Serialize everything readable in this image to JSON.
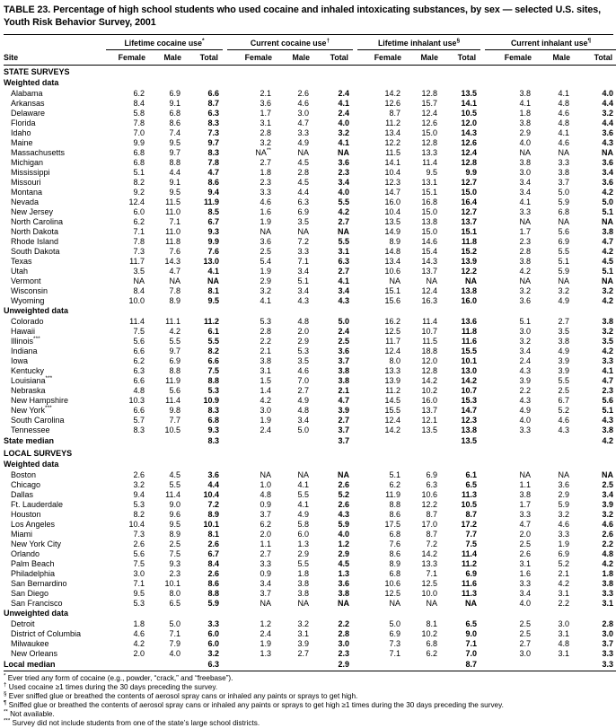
{
  "title": "TABLE 23. Percentage of high school students who used cocaine and inhaled intoxicating substances, by sex — selected U.S. sites, Youth Risk Behavior Survey, 2001",
  "header": {
    "site_label": "Site",
    "sub_labels": [
      "Female",
      "Male",
      "Total"
    ],
    "groups": [
      {
        "label": "Lifetime cocaine use",
        "sup": "*"
      },
      {
        "label": "Current cocaine use",
        "sup": "†"
      },
      {
        "label": "Lifetime inhalant use",
        "sup": "§"
      },
      {
        "label": "Current inhalant use",
        "sup": "¶"
      }
    ]
  },
  "sections": [
    {
      "type": "section",
      "label": "STATE SURVEYS"
    },
    {
      "type": "subsection",
      "label": "Weighted data"
    },
    {
      "type": "row",
      "site": "Alabama",
      "values": [
        "6.2",
        "6.9",
        "6.6",
        "2.1",
        "2.6",
        "2.4",
        "14.2",
        "12.8",
        "13.5",
        "3.8",
        "4.1",
        "4.0"
      ]
    },
    {
      "type": "row",
      "site": "Arkansas",
      "values": [
        "8.4",
        "9.1",
        "8.7",
        "3.6",
        "4.6",
        "4.1",
        "12.6",
        "15.7",
        "14.1",
        "4.1",
        "4.8",
        "4.4"
      ]
    },
    {
      "type": "row",
      "site": "Delaware",
      "values": [
        "5.8",
        "6.8",
        "6.3",
        "1.7",
        "3.0",
        "2.4",
        "8.7",
        "12.4",
        "10.5",
        "1.8",
        "4.6",
        "3.2"
      ]
    },
    {
      "type": "row",
      "site": "Florida",
      "values": [
        "7.8",
        "8.6",
        "8.3",
        "3.1",
        "4.7",
        "4.0",
        "11.2",
        "12.6",
        "12.0",
        "3.8",
        "4.8",
        "4.4"
      ]
    },
    {
      "type": "row",
      "site": "Idaho",
      "values": [
        "7.0",
        "7.4",
        "7.3",
        "2.8",
        "3.3",
        "3.2",
        "13.4",
        "15.0",
        "14.3",
        "2.9",
        "4.1",
        "3.6"
      ]
    },
    {
      "type": "row",
      "site": "Maine",
      "values": [
        "9.9",
        "9.5",
        "9.7",
        "3.2",
        "4.9",
        "4.1",
        "12.2",
        "12.8",
        "12.6",
        "4.0",
        "4.6",
        "4.3"
      ]
    },
    {
      "type": "row",
      "site": "Massachusetts",
      "values": [
        "6.8",
        "9.7",
        "8.3",
        "NA**",
        "NA",
        "NA",
        "11.5",
        "13.3",
        "12.4",
        "NA",
        "NA",
        "NA"
      ]
    },
    {
      "type": "row",
      "site": "Michigan",
      "values": [
        "6.8",
        "8.8",
        "7.8",
        "2.7",
        "4.5",
        "3.6",
        "14.1",
        "11.4",
        "12.8",
        "3.8",
        "3.3",
        "3.6"
      ]
    },
    {
      "type": "row",
      "site": "Mississippi",
      "values": [
        "5.1",
        "4.4",
        "4.7",
        "1.8",
        "2.8",
        "2.3",
        "10.4",
        "9.5",
        "9.9",
        "3.0",
        "3.8",
        "3.4"
      ]
    },
    {
      "type": "row",
      "site": "Missouri",
      "values": [
        "8.2",
        "9.1",
        "8.6",
        "2.3",
        "4.5",
        "3.4",
        "12.3",
        "13.1",
        "12.7",
        "3.4",
        "3.7",
        "3.6"
      ]
    },
    {
      "type": "row",
      "site": "Montana",
      "values": [
        "9.2",
        "9.5",
        "9.4",
        "3.3",
        "4.4",
        "4.0",
        "14.7",
        "15.1",
        "15.0",
        "3.4",
        "5.0",
        "4.2"
      ]
    },
    {
      "type": "row",
      "site": "Nevada",
      "values": [
        "12.4",
        "11.5",
        "11.9",
        "4.6",
        "6.3",
        "5.5",
        "16.0",
        "16.8",
        "16.4",
        "4.1",
        "5.9",
        "5.0"
      ]
    },
    {
      "type": "row",
      "site": "New Jersey",
      "values": [
        "6.0",
        "11.0",
        "8.5",
        "1.6",
        "6.9",
        "4.2",
        "10.4",
        "15.0",
        "12.7",
        "3.3",
        "6.8",
        "5.1"
      ]
    },
    {
      "type": "row",
      "site": "North Carolina",
      "values": [
        "6.2",
        "7.1",
        "6.7",
        "1.9",
        "3.5",
        "2.7",
        "13.5",
        "13.8",
        "13.7",
        "NA",
        "NA",
        "NA"
      ]
    },
    {
      "type": "row",
      "site": "North Dakota",
      "values": [
        "7.1",
        "11.0",
        "9.3",
        "NA",
        "NA",
        "NA",
        "14.9",
        "15.0",
        "15.1",
        "1.7",
        "5.6",
        "3.8"
      ]
    },
    {
      "type": "row",
      "site": "Rhode Island",
      "values": [
        "7.8",
        "11.8",
        "9.9",
        "3.6",
        "7.2",
        "5.5",
        "8.9",
        "14.6",
        "11.8",
        "2.3",
        "6.9",
        "4.7"
      ]
    },
    {
      "type": "row",
      "site": "South Dakota",
      "values": [
        "7.3",
        "7.6",
        "7.6",
        "2.5",
        "3.3",
        "3.1",
        "14.8",
        "15.4",
        "15.2",
        "2.8",
        "5.5",
        "4.2"
      ]
    },
    {
      "type": "row",
      "site": "Texas",
      "values": [
        "11.7",
        "14.3",
        "13.0",
        "5.4",
        "7.1",
        "6.3",
        "13.4",
        "14.3",
        "13.9",
        "3.8",
        "5.1",
        "4.5"
      ]
    },
    {
      "type": "row",
      "site": "Utah",
      "values": [
        "3.5",
        "4.7",
        "4.1",
        "1.9",
        "3.4",
        "2.7",
        "10.6",
        "13.7",
        "12.2",
        "4.2",
        "5.9",
        "5.1"
      ]
    },
    {
      "type": "row",
      "site": "Vermont",
      "values": [
        "NA",
        "NA",
        "NA",
        "2.9",
        "5.1",
        "4.1",
        "NA",
        "NA",
        "NA",
        "NA",
        "NA",
        "NA"
      ]
    },
    {
      "type": "row",
      "site": "Wisconsin",
      "values": [
        "8.4",
        "7.8",
        "8.1",
        "3.2",
        "3.4",
        "3.4",
        "15.1",
        "12.4",
        "13.8",
        "3.2",
        "3.2",
        "3.2"
      ]
    },
    {
      "type": "row",
      "site": "Wyoming",
      "values": [
        "10.0",
        "8.9",
        "9.5",
        "4.1",
        "4.3",
        "4.3",
        "15.6",
        "16.3",
        "16.0",
        "3.6",
        "4.9",
        "4.2"
      ]
    },
    {
      "type": "subsection",
      "label": "Unweighted data"
    },
    {
      "type": "row",
      "site": "Colorado",
      "values": [
        "11.4",
        "11.1",
        "11.2",
        "5.3",
        "4.8",
        "5.0",
        "16.2",
        "11.4",
        "13.6",
        "5.1",
        "2.7",
        "3.8"
      ]
    },
    {
      "type": "row",
      "site": "Hawaii",
      "values": [
        "7.5",
        "4.2",
        "6.1",
        "2.8",
        "2.0",
        "2.4",
        "12.5",
        "10.7",
        "11.8",
        "3.0",
        "3.5",
        "3.2"
      ]
    },
    {
      "type": "row",
      "site": "Illinois",
      "site_sup": "***",
      "values": [
        "5.6",
        "5.5",
        "5.5",
        "2.2",
        "2.9",
        "2.5",
        "11.7",
        "11.5",
        "11.6",
        "3.2",
        "3.8",
        "3.5"
      ]
    },
    {
      "type": "row",
      "site": "Indiana",
      "values": [
        "6.6",
        "9.7",
        "8.2",
        "2.1",
        "5.3",
        "3.6",
        "12.4",
        "18.8",
        "15.5",
        "3.4",
        "4.9",
        "4.2"
      ]
    },
    {
      "type": "row",
      "site": "Iowa",
      "values": [
        "6.2",
        "6.9",
        "6.6",
        "3.8",
        "3.5",
        "3.7",
        "8.0",
        "12.0",
        "10.1",
        "2.4",
        "3.9",
        "3.3"
      ]
    },
    {
      "type": "row",
      "site": "Kentucky",
      "values": [
        "6.3",
        "8.8",
        "7.5",
        "3.1",
        "4.6",
        "3.8",
        "13.3",
        "12.8",
        "13.0",
        "4.3",
        "3.9",
        "4.1"
      ]
    },
    {
      "type": "row",
      "site": "Louisiana",
      "site_sup": "***",
      "values": [
        "6.6",
        "11.9",
        "8.8",
        "1.5",
        "7.0",
        "3.8",
        "13.9",
        "14.2",
        "14.2",
        "3.9",
        "5.5",
        "4.7"
      ]
    },
    {
      "type": "row",
      "site": "Nebraska",
      "values": [
        "4.8",
        "5.6",
        "5.3",
        "1.4",
        "2.7",
        "2.1",
        "11.2",
        "10.2",
        "10.7",
        "2.2",
        "2.5",
        "2.3"
      ]
    },
    {
      "type": "row",
      "site": "New Hampshire",
      "values": [
        "10.3",
        "11.4",
        "10.9",
        "4.2",
        "4.9",
        "4.7",
        "14.5",
        "16.0",
        "15.3",
        "4.3",
        "6.7",
        "5.6"
      ]
    },
    {
      "type": "row",
      "site": "New York",
      "site_sup": "***",
      "values": [
        "6.6",
        "9.8",
        "8.3",
        "3.0",
        "4.8",
        "3.9",
        "15.5",
        "13.7",
        "14.7",
        "4.9",
        "5.2",
        "5.1"
      ]
    },
    {
      "type": "row",
      "site": "South Carolina",
      "values": [
        "5.7",
        "7.7",
        "6.8",
        "1.9",
        "3.4",
        "2.7",
        "12.4",
        "12.1",
        "12.3",
        "4.0",
        "4.6",
        "4.3"
      ]
    },
    {
      "type": "row",
      "site": "Tennessee",
      "values": [
        "8.3",
        "10.5",
        "9.3",
        "2.4",
        "5.0",
        "3.7",
        "14.2",
        "13.5",
        "13.8",
        "3.3",
        "4.3",
        "3.8"
      ]
    },
    {
      "type": "median",
      "site": "State median",
      "values": [
        "",
        "",
        "8.3",
        "",
        "",
        "3.7",
        "",
        "",
        "13.5",
        "",
        "",
        "4.2"
      ]
    },
    {
      "type": "section",
      "label": "LOCAL SURVEYS"
    },
    {
      "type": "subsection",
      "label": "Weighted data"
    },
    {
      "type": "row",
      "site": "Boston",
      "values": [
        "2.6",
        "4.5",
        "3.6",
        "NA",
        "NA",
        "NA",
        "5.1",
        "6.9",
        "6.1",
        "NA",
        "NA",
        "NA"
      ]
    },
    {
      "type": "row",
      "site": "Chicago",
      "values": [
        "3.2",
        "5.5",
        "4.4",
        "1.0",
        "4.1",
        "2.6",
        "6.2",
        "6.3",
        "6.5",
        "1.1",
        "3.6",
        "2.5"
      ]
    },
    {
      "type": "row",
      "site": "Dallas",
      "values": [
        "9.4",
        "11.4",
        "10.4",
        "4.8",
        "5.5",
        "5.2",
        "11.9",
        "10.6",
        "11.3",
        "3.8",
        "2.9",
        "3.4"
      ]
    },
    {
      "type": "row",
      "site": "Ft. Lauderdale",
      "values": [
        "5.3",
        "9.0",
        "7.2",
        "0.9",
        "4.1",
        "2.6",
        "8.8",
        "12.2",
        "10.5",
        "1.7",
        "5.9",
        "3.9"
      ]
    },
    {
      "type": "row",
      "site": "Houston",
      "values": [
        "8.2",
        "9.6",
        "8.9",
        "3.7",
        "4.9",
        "4.3",
        "8.6",
        "8.7",
        "8.7",
        "3.3",
        "3.2",
        "3.2"
      ]
    },
    {
      "type": "row",
      "site": "Los Angeles",
      "values": [
        "10.4",
        "9.5",
        "10.1",
        "6.2",
        "5.8",
        "5.9",
        "17.5",
        "17.0",
        "17.2",
        "4.7",
        "4.6",
        "4.6"
      ]
    },
    {
      "type": "row",
      "site": "Miami",
      "values": [
        "7.3",
        "8.9",
        "8.1",
        "2.0",
        "6.0",
        "4.0",
        "6.8",
        "8.7",
        "7.7",
        "2.0",
        "3.3",
        "2.6"
      ]
    },
    {
      "type": "row",
      "site": "New York City",
      "values": [
        "2.6",
        "2.5",
        "2.6",
        "1.1",
        "1.3",
        "1.2",
        "7.6",
        "7.2",
        "7.5",
        "2.5",
        "1.9",
        "2.2"
      ]
    },
    {
      "type": "row",
      "site": "Orlando",
      "values": [
        "5.6",
        "7.5",
        "6.7",
        "2.7",
        "2.9",
        "2.9",
        "8.6",
        "14.2",
        "11.4",
        "2.6",
        "6.9",
        "4.8"
      ]
    },
    {
      "type": "row",
      "site": "Palm Beach",
      "values": [
        "7.5",
        "9.3",
        "8.4",
        "3.3",
        "5.5",
        "4.5",
        "8.9",
        "13.3",
        "11.2",
        "3.1",
        "5.2",
        "4.2"
      ]
    },
    {
      "type": "row",
      "site": "Philadelphia",
      "values": [
        "3.0",
        "2.3",
        "2.6",
        "0.9",
        "1.8",
        "1.3",
        "6.8",
        "7.1",
        "6.9",
        "1.6",
        "2.1",
        "1.8"
      ]
    },
    {
      "type": "row",
      "site": "San Bernardino",
      "values": [
        "7.1",
        "10.1",
        "8.6",
        "3.4",
        "3.8",
        "3.6",
        "10.6",
        "12.5",
        "11.6",
        "3.3",
        "4.2",
        "3.8"
      ]
    },
    {
      "type": "row",
      "site": "San Diego",
      "values": [
        "9.5",
        "8.0",
        "8.8",
        "3.7",
        "3.8",
        "3.8",
        "12.5",
        "10.0",
        "11.3",
        "3.4",
        "3.1",
        "3.3"
      ]
    },
    {
      "type": "row",
      "site": "San Francisco",
      "values": [
        "5.3",
        "6.5",
        "5.9",
        "NA",
        "NA",
        "NA",
        "NA",
        "NA",
        "NA",
        "4.0",
        "2.2",
        "3.1"
      ]
    },
    {
      "type": "subsection",
      "label": "Unweighted data"
    },
    {
      "type": "row",
      "site": "Detroit",
      "values": [
        "1.8",
        "5.0",
        "3.3",
        "1.2",
        "3.2",
        "2.2",
        "5.0",
        "8.1",
        "6.5",
        "2.5",
        "3.0",
        "2.8"
      ]
    },
    {
      "type": "row",
      "site": "District of Columbia",
      "values": [
        "4.6",
        "7.1",
        "6.0",
        "2.4",
        "3.1",
        "2.8",
        "6.9",
        "10.2",
        "9.0",
        "2.5",
        "3.1",
        "3.0"
      ]
    },
    {
      "type": "row",
      "site": "Milwaukee",
      "values": [
        "4.2",
        "7.9",
        "6.0",
        "1.9",
        "3.9",
        "3.0",
        "7.3",
        "6.8",
        "7.1",
        "2.7",
        "4.8",
        "3.7"
      ]
    },
    {
      "type": "row",
      "site": "New Orleans",
      "values": [
        "2.0",
        "4.0",
        "3.2",
        "1.3",
        "2.7",
        "2.3",
        "7.1",
        "6.2",
        "7.0",
        "3.0",
        "3.1",
        "3.3"
      ]
    },
    {
      "type": "median",
      "site": "Local median",
      "values": [
        "",
        "",
        "6.3",
        "",
        "",
        "2.9",
        "",
        "",
        "8.7",
        "",
        "",
        "3.3"
      ]
    }
  ],
  "footnotes": [
    {
      "marker": "*",
      "text": "Ever tried any form of cocaine (e.g., powder, “crack,” and “freebase”)."
    },
    {
      "marker": "†",
      "text": "Used cocaine ≥1 times during the 30 days preceding the survey."
    },
    {
      "marker": "§",
      "text": "Ever sniffed glue or breathed the contents of aerosol spray cans or inhaled any paints or sprays to get high."
    },
    {
      "marker": "¶",
      "text": "Sniffed glue or breathed the contents of aerosol spray cans or inhaled any paints or sprays to get high ≥1 times during the 30 days preceding the survey."
    },
    {
      "marker": "**",
      "text": "Not available."
    },
    {
      "marker": "***",
      "text": "Survey did not include students from one of the state’s large school districts."
    }
  ]
}
